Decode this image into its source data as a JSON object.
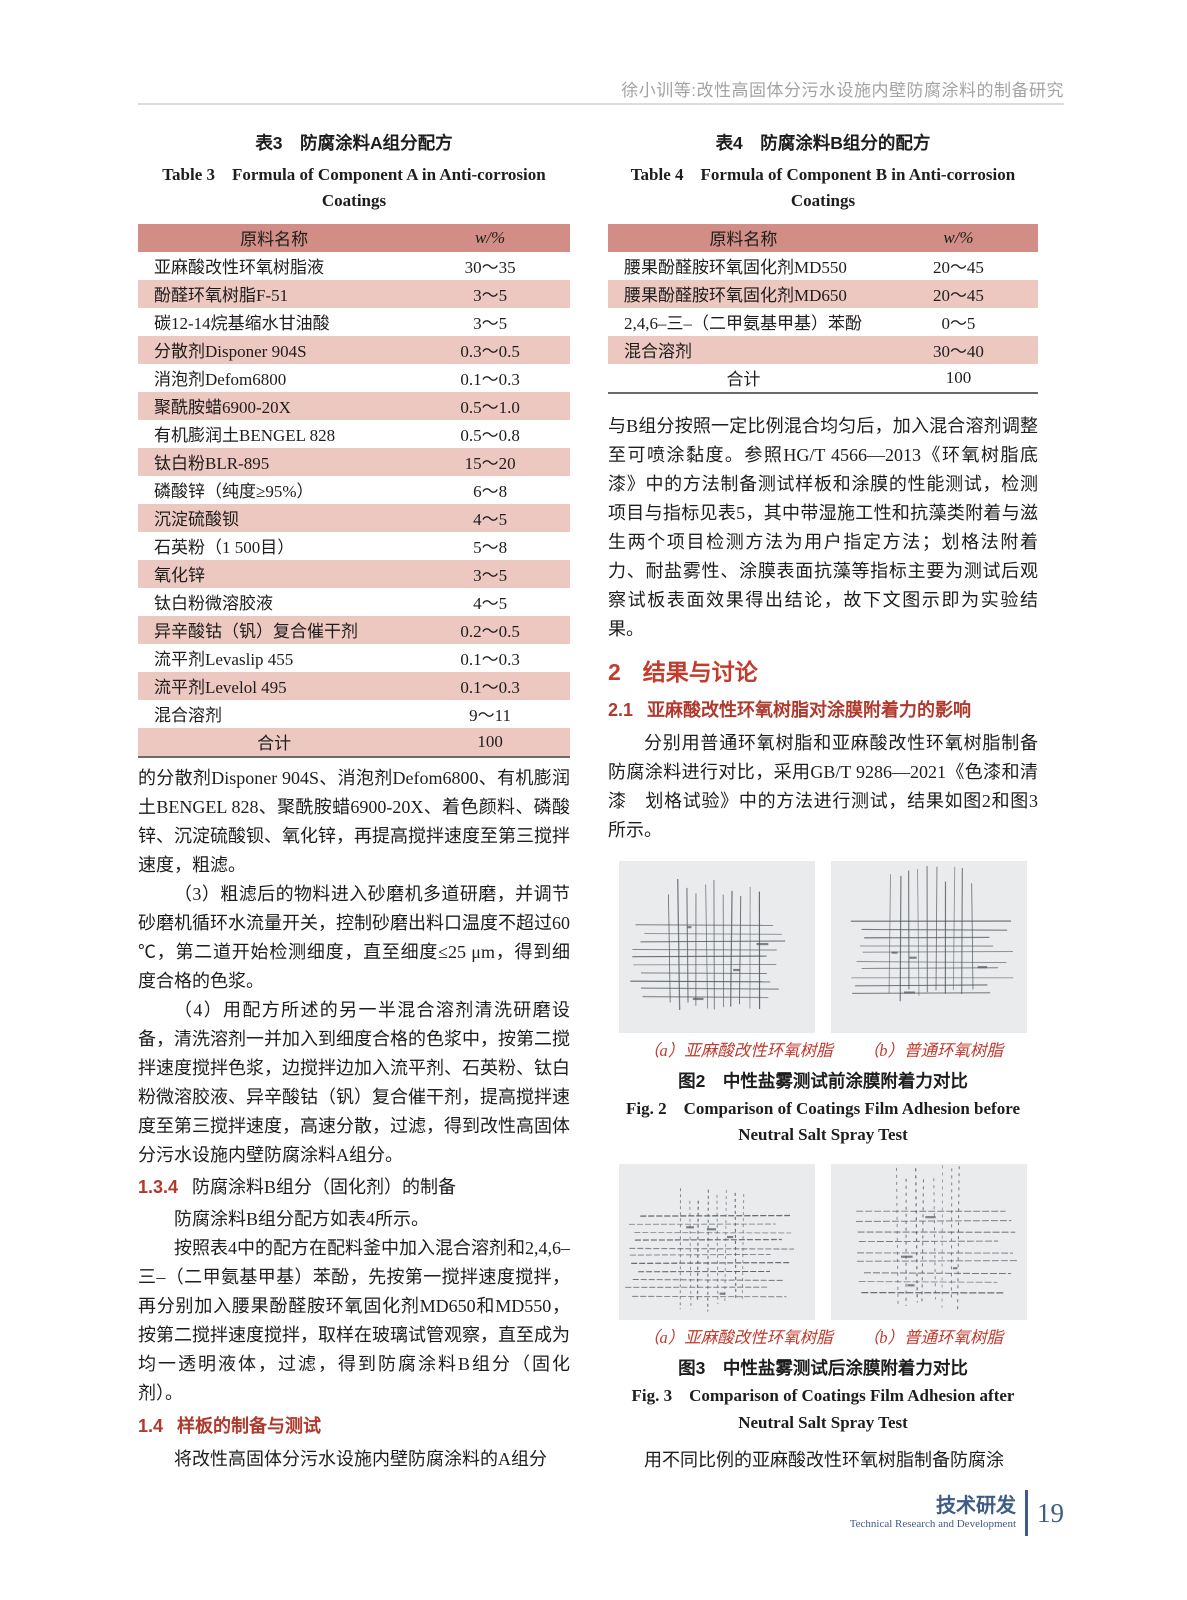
{
  "header": {
    "running_title": "徐小训等:改性高固体分污水设施内壁防腐涂料的制备研究"
  },
  "colors": {
    "table_header_pink": "#d28e86",
    "table_stripe_pink": "#ecc8c1",
    "heading_red": "#b0392d",
    "section_red": "#c23b2b",
    "figure_label_red": "#c03a2e",
    "footer_blue": "#3e5c85"
  },
  "table3": {
    "caption_cn": "表3　防腐涂料A组分配方",
    "caption_en_line1": "Table 3　Formula of Component A in Anti-corrosion",
    "caption_en_line2": "Coatings",
    "col_headers": [
      "原料名称",
      "w/%"
    ],
    "rows": [
      [
        "亚麻酸改性环氧树脂液",
        "30～35"
      ],
      [
        "酚醛环氧树脂F-51",
        "3～5"
      ],
      [
        "碳12-14烷基缩水甘油酸",
        "3～5"
      ],
      [
        "分散剂Disponer 904S",
        "0.3～0.5"
      ],
      [
        "消泡剂Defom6800",
        "0.1～0.3"
      ],
      [
        "聚酰胺蜡6900-20X",
        "0.5～1.0"
      ],
      [
        "有机膨润土BENGEL 828",
        "0.5～0.8"
      ],
      [
        "钛白粉BLR-895",
        "15～20"
      ],
      [
        "磷酸锌（纯度≥95%）",
        "6～8"
      ],
      [
        "沉淀硫酸钡",
        "4～5"
      ],
      [
        "石英粉（1 500目）",
        "5～8"
      ],
      [
        "氧化锌",
        "3～5"
      ],
      [
        "钛白粉微溶胶液",
        "4～5"
      ],
      [
        "异辛酸钴（钒）复合催干剂",
        "0.2～0.5"
      ],
      [
        "流平剂Levaslip 455",
        "0.1～0.3"
      ],
      [
        "流平剂Levelol 495",
        "0.1～0.3"
      ],
      [
        "混合溶剂",
        "9～11"
      ],
      [
        "合计",
        "100"
      ]
    ]
  },
  "table4": {
    "caption_cn": "表4　防腐涂料B组分的配方",
    "caption_en_line1": "Table 4　Formula of Component B in Anti-corrosion",
    "caption_en_line2": "Coatings",
    "col_headers": [
      "原料名称",
      "w/%"
    ],
    "rows": [
      [
        "腰果酚醛胺环氧固化剂MD550",
        "20～45"
      ],
      [
        "腰果酚醛胺环氧固化剂MD650",
        "20～45"
      ],
      [
        "2,4,6–三–（二甲氨基甲基）苯酚",
        "0～5"
      ],
      [
        "混合溶剂",
        "30～40"
      ],
      [
        "合计",
        "100"
      ]
    ]
  },
  "left": {
    "p_continuation": "的分散剂Disponer 904S、消泡剂Defom6800、有机膨润土BENGEL 828、聚酰胺蜡6900-20X、着色颜料、磷酸锌、沉淀硫酸钡、氧化锌，再提高搅拌速度至第三搅拌速度，粗滤。",
    "p_step3": "（3）粗滤后的物料进入砂磨机多道研磨，并调节砂磨机循环水流量开关，控制砂磨出料口温度不超过60 ℃，第二道开始检测细度，直至细度≤25 μm，得到细度合格的色浆。",
    "p_step4": "（4）用配方所述的另一半混合溶剂清洗研磨设备，清洗溶剂一并加入到细度合格的色浆中，按第二搅拌速度搅拌色浆，边搅拌边加入流平剂、石英粉、钛白粉微溶胶液、异辛酸钴（钒）复合催干剂，提高搅拌速度至第三搅拌速度，高速分散，过滤，得到改性高固体分污水设施内壁防腐涂料A组分。",
    "h134_num": "1.3.4",
    "h134_title": "防腐涂料B组分（固化剂）的制备",
    "p_b_intro": "防腐涂料B组分配方如表4所示。",
    "p_b_process": "按照表4中的配方在配料釜中加入混合溶剂和2,4,6–三–（二甲氨基甲基）苯酚，先按第一搅拌速度搅拌，再分别加入腰果酚醛胺环氧固化剂MD650和MD550，按第二搅拌速度搅拌，取样在玻璃试管观察，直至成为均一透明液体，过滤，得到防腐涂料B组分（固化剂）。",
    "h14_num": "1.4",
    "h14_title": "样板的制备与测试",
    "p_last": "将改性高固体分污水设施内壁防腐涂料的A组分"
  },
  "right": {
    "p_mix": "与B组分按照一定比例混合均匀后，加入混合溶剂调整至可喷涂黏度。参照HG/T 4566—2013《环氧树脂底漆》中的方法制备测试样板和涂膜的性能测试，检测项目与指标见表5，其中带湿施工性和抗藻类附着与滋生两个项目检测方法为用户指定方法；划格法附着力、耐盐雾性、涂膜表面抗藻等指标主要为测试后观察试板表面效果得出结论，故下文图示即为实验结果。",
    "h2_num": "2",
    "h2_title": "结果与讨论",
    "h21_num": "2.1",
    "h21_title": "亚麻酸改性环氧树脂对涂膜附着力的影响",
    "p_compare": "分别用普通环氧树脂和亚麻酸改性环氧树脂制备防腐涂料进行对比，采用GB/T 9286—2021《色漆和清漆　划格试验》中的方法进行测试，结果如图2和图3所示。",
    "p_last": "用不同比例的亚麻酸改性环氧树脂制备防腐涂"
  },
  "figure2": {
    "label_a": "（a）亚麻酸改性环氧树脂",
    "label_b": "（b）普通环氧树脂",
    "caption_cn": "图2　中性盐雾测试前涂膜附着力对比",
    "caption_en_line1": "Fig. 2　Comparison of Coatings Film Adhesion before",
    "caption_en_line2": "Neutral Salt Spray Test"
  },
  "figure3": {
    "label_a": "（a）亚麻酸改性环氧树脂",
    "label_b": "（b）普通环氧树脂",
    "caption_cn": "图3　中性盐雾测试后涂膜附着力对比",
    "caption_en_line1": "Fig. 3　Comparison of Coatings Film Adhesion after",
    "caption_en_line2": "Neutral Salt Spray Test"
  },
  "footer": {
    "cn": "技术研发",
    "en": "Technical Research and Development",
    "page_number": "19"
  }
}
